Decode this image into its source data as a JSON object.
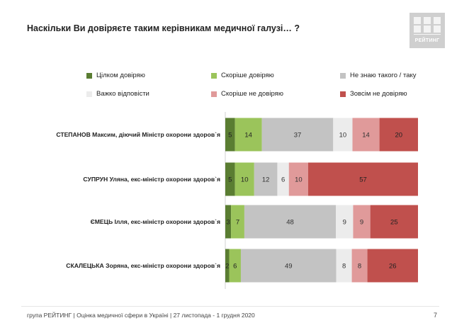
{
  "title": "Наскільки Ви довіряєте таким керівникам медичної галузі… ?",
  "logo": {
    "text": "РЕЙТИНГ"
  },
  "legend": [
    {
      "label": "Цілком довіряю",
      "color": "#5a7d32"
    },
    {
      "label": "Скоріше довіряю",
      "color": "#9bc45b"
    },
    {
      "label": "Не знаю такого / таку",
      "color": "#c3c3c3"
    },
    {
      "label": "Важко відповісти",
      "color": "#ececec"
    },
    {
      "label": "Скоріше не довіряю",
      "color": "#e09a9a"
    },
    {
      "label": "Зовсім не довіряю",
      "color": "#c0504d"
    }
  ],
  "chart_data": {
    "type": "bar",
    "stacked": true,
    "orientation": "horizontal",
    "categories": [
      "СТЕПАНОВ Максим, діючий Міністр охорони здоров`я",
      "СУПРУН Уляна, екс-міністр охорони здоров`я",
      "ЄМЕЦЬ Ілля, екс-міністр охорони здоров`я",
      "СКАЛЕЦЬКА Зоряна, екс-міністр охорони здоров`я"
    ],
    "series": [
      {
        "name": "Цілком довіряю",
        "values": [
          5,
          5,
          3,
          2
        ]
      },
      {
        "name": "Скоріше довіряю",
        "values": [
          14,
          10,
          7,
          6
        ]
      },
      {
        "name": "Не знаю такого / таку",
        "values": [
          37,
          12,
          48,
          49
        ]
      },
      {
        "name": "Важко відповісти",
        "values": [
          10,
          6,
          9,
          8
        ]
      },
      {
        "name": "Скоріше не довіряю",
        "values": [
          14,
          10,
          9,
          8
        ]
      },
      {
        "name": "Зовсім не довіряю",
        "values": [
          20,
          57,
          25,
          26
        ]
      }
    ]
  },
  "footer": {
    "text": "група РЕЙТИНГ  |  Оцінка медичної сфери в Україні  | 27 листопада - 1 грудня 2020",
    "page": "7"
  }
}
